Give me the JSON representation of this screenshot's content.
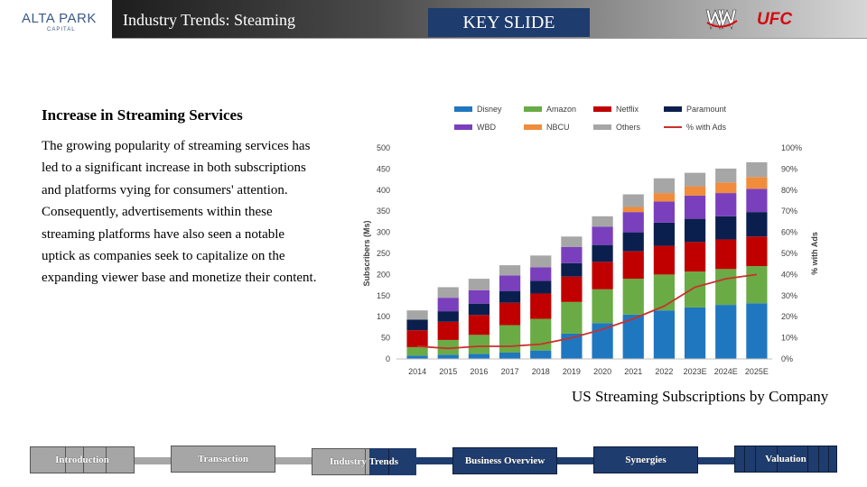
{
  "header": {
    "logo_main": "ALTA PARK",
    "logo_sub": "CAPITAL",
    "title": "Industry Trends: Steaming",
    "key_slide": "KEY SLIDE",
    "logo_wwe": "WWE",
    "logo_ufc": "UFC"
  },
  "content": {
    "heading": "Increase in Streaming Services",
    "body": "The growing popularity of streaming services has led to a significant increase in both subscriptions and platforms vying for consumers' attention. Consequently, advertisements within these streaming platforms have also seen a notable uptick as companies seek to capitalize on the expanding viewer base and monetize their content.",
    "caption": "US Streaming Subscriptions by Company"
  },
  "chart_data": {
    "type": "bar",
    "stacked": true,
    "categories": [
      "2014",
      "2015",
      "2016",
      "2017",
      "2018",
      "2019",
      "2020",
      "2021",
      "2022",
      "2023E",
      "2024E",
      "2025E"
    ],
    "series": [
      {
        "name": "Disney",
        "color": "#1f77c0",
        "values": [
          8,
          10,
          12,
          15,
          20,
          60,
          85,
          105,
          115,
          122,
          128,
          132
        ]
      },
      {
        "name": "Amazon",
        "color": "#6aab45",
        "values": [
          20,
          35,
          45,
          65,
          75,
          75,
          80,
          85,
          85,
          85,
          85,
          88
        ]
      },
      {
        "name": "Netflix",
        "color": "#c00000",
        "values": [
          40,
          43,
          47,
          53,
          60,
          60,
          65,
          65,
          68,
          70,
          70,
          70
        ]
      },
      {
        "name": "Paramount",
        "color": "#0b1f4e",
        "values": [
          25,
          25,
          27,
          28,
          30,
          32,
          40,
          45,
          55,
          55,
          55,
          58
        ]
      },
      {
        "name": "WBD",
        "color": "#7a3fbd",
        "values": [
          0,
          32,
          32,
          37,
          32,
          38,
          43,
          48,
          50,
          55,
          55,
          55
        ]
      },
      {
        "name": "NBCU",
        "color": "#f08c3c",
        "values": [
          0,
          0,
          0,
          0,
          0,
          0,
          0,
          12,
          20,
          22,
          25,
          28
        ]
      },
      {
        "name": "Others",
        "color": "#a6a6a6",
        "values": [
          22,
          25,
          27,
          24,
          28,
          25,
          25,
          30,
          35,
          32,
          33,
          35
        ]
      }
    ],
    "line_series": {
      "name": "% with Ads",
      "color": "#c8302c",
      "axis": "right",
      "values": [
        6,
        5,
        6,
        6,
        7,
        10,
        14,
        19,
        25,
        34,
        38,
        40
      ]
    },
    "ylabel": "Subscribers (Ms)",
    "ylabel_right": "% with Ads",
    "ylim": [
      0,
      500
    ],
    "ylim_right": [
      0,
      100
    ],
    "yticks": [
      "0",
      "50",
      "100",
      "150",
      "200",
      "250",
      "300",
      "350",
      "400",
      "450",
      "500"
    ],
    "yticks_right": [
      "0%",
      "10%",
      "20%",
      "30%",
      "40%",
      "50%",
      "60%",
      "70%",
      "80%",
      "90%",
      "100%"
    ],
    "grid": false,
    "legend": "top"
  },
  "nav": {
    "items": [
      {
        "label": "Introduction",
        "active": false
      },
      {
        "label": "Transaction",
        "active": false
      },
      {
        "label": "Industry Trends",
        "active": true
      },
      {
        "label": "Business Overview",
        "active": false
      },
      {
        "label": "Synergies",
        "active": false
      },
      {
        "label": "Valuation",
        "active": false
      }
    ],
    "colors": {
      "inactive": "#a6a6a6",
      "active": "#1f3c6e"
    }
  }
}
